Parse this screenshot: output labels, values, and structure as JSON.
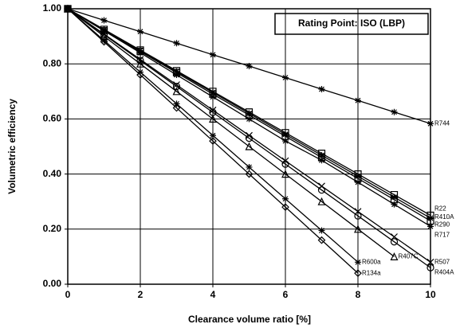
{
  "chart_data": {
    "type": "line",
    "title": "Rating Point: ISO (LBP)",
    "xlabel": "Clearance volume ratio  [%]",
    "ylabel": "Volumetric efficiency",
    "x": [
      0,
      1,
      2,
      3,
      4,
      5,
      6,
      7,
      8,
      9,
      10
    ],
    "xlim": [
      0,
      10
    ],
    "xticks": [
      0,
      2,
      4,
      6,
      8,
      10
    ],
    "ylim": [
      0,
      1
    ],
    "yticks": [
      {
        "value": 0,
        "label": "0.00"
      },
      {
        "value": 0.2,
        "label": "0.20"
      },
      {
        "value": 0.4,
        "label": "0.40"
      },
      {
        "value": 0.6,
        "label": "0.60"
      },
      {
        "value": 0.8,
        "label": "0.80"
      },
      {
        "value": 1,
        "label": "1.00"
      }
    ],
    "grid": true,
    "series": [
      {
        "name": "R744",
        "color": "#000000",
        "marker": "asterisk",
        "values": [
          1,
          0.958,
          0.917,
          0.875,
          0.833,
          0.792,
          0.75,
          0.708,
          0.667,
          0.625,
          0.583
        ]
      },
      {
        "name": "R22",
        "color": "#000000",
        "marker": "square",
        "values": [
          1,
          0.925,
          0.85,
          0.775,
          0.7,
          0.625,
          0.55,
          0.475,
          0.4,
          0.325,
          0.25
        ]
      },
      {
        "name": "R410A",
        "color": "#000000",
        "marker": "asterisk",
        "values": [
          1,
          0.924,
          0.848,
          0.772,
          0.696,
          0.62,
          0.544,
          0.468,
          0.392,
          0.316,
          0.24
        ]
      },
      {
        "name": "R290",
        "color": "#000000",
        "marker": "square",
        "values": [
          1,
          0.92,
          0.845,
          0.768,
          0.69,
          0.614,
          0.537,
          0.46,
          0.384,
          0.307,
          0.23
        ]
      },
      {
        "name": "R717",
        "color": "#000000",
        "marker": "asterisk",
        "values": [
          1,
          0.92,
          0.84,
          0.76,
          0.68,
          0.6,
          0.52,
          0.45,
          0.37,
          0.29,
          0.21
        ]
      },
      {
        "name": "R507",
        "color": "#000000",
        "marker": "cross",
        "values": [
          1,
          0.908,
          0.816,
          0.724,
          0.632,
          0.54,
          0.448,
          0.356,
          0.264,
          0.172,
          0.08
        ]
      },
      {
        "name": "R404A",
        "color": "#000000",
        "marker": "circle",
        "values": [
          1,
          0.906,
          0.812,
          0.718,
          0.624,
          0.53,
          0.436,
          0.342,
          0.248,
          0.154,
          0.06
        ]
      },
      {
        "name": "R407C",
        "color": "#000000",
        "marker": "triangle",
        "values": [
          1,
          0.9,
          0.8,
          0.7,
          0.6,
          0.5,
          0.4,
          0.3,
          0.2,
          0.1,
          null
        ]
      },
      {
        "name": "R600a",
        "color": "#000000",
        "marker": "asterisk",
        "values": [
          1,
          0.885,
          0.77,
          0.655,
          0.54,
          0.425,
          0.31,
          0.195,
          0.08,
          null,
          null
        ]
      },
      {
        "name": "R134a",
        "color": "#000000",
        "marker": "diamond",
        "values": [
          1,
          0.88,
          0.76,
          0.64,
          0.52,
          0.4,
          0.28,
          0.16,
          0.04,
          null,
          null
        ]
      }
    ]
  }
}
